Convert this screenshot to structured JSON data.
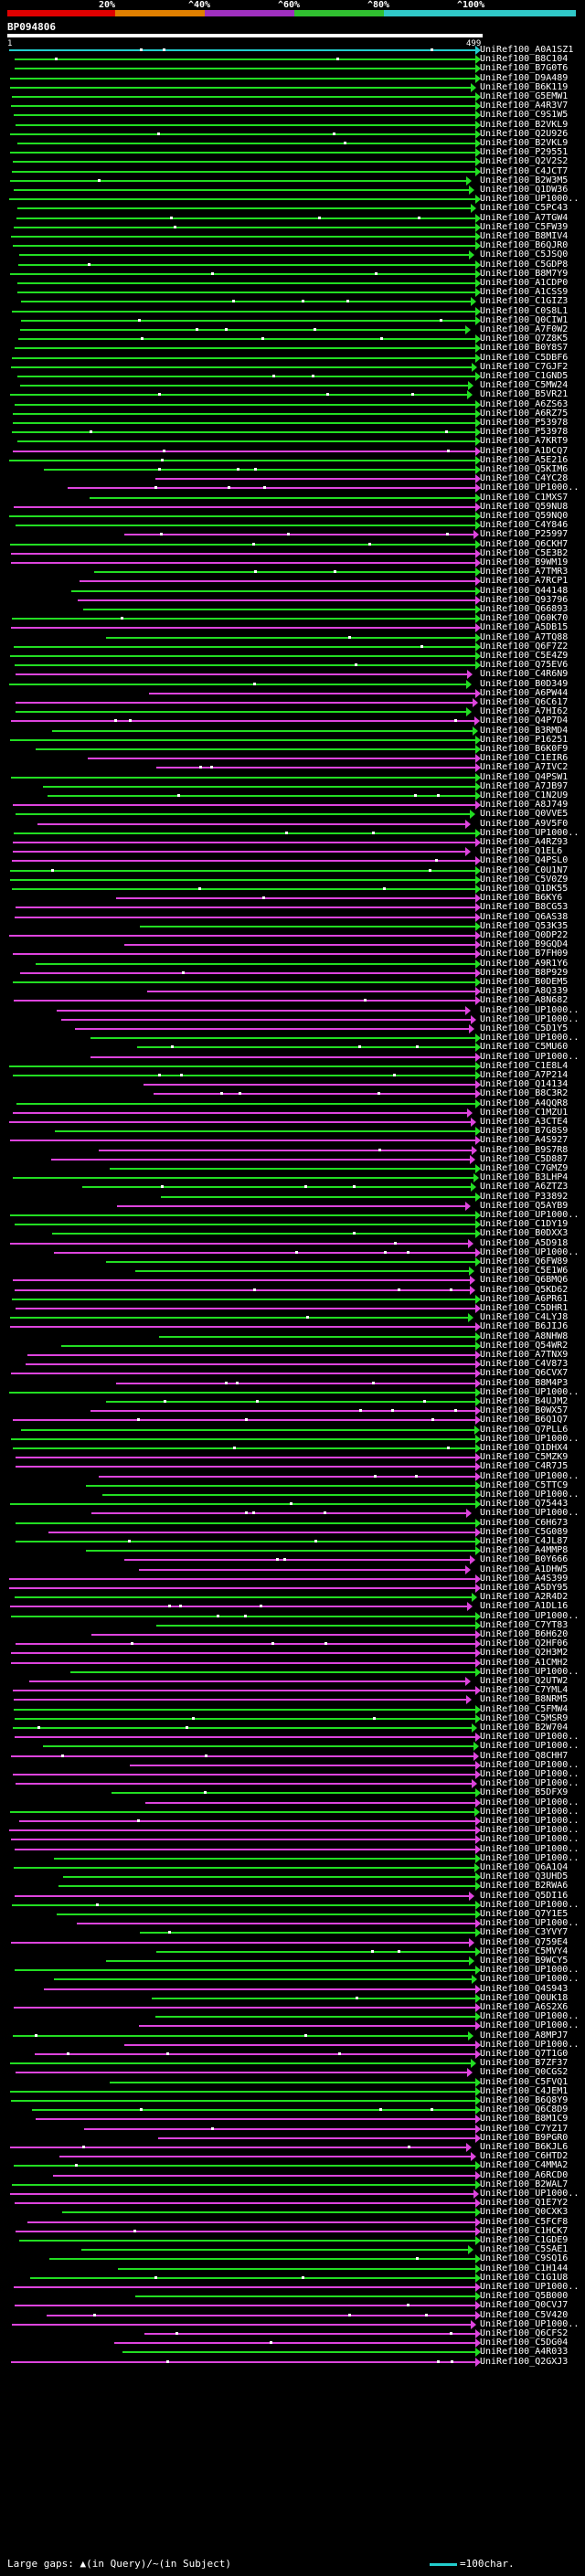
{
  "scale": {
    "labels": [
      "20%",
      "^40%",
      "^60%",
      "^80%",
      "^100%"
    ],
    "colors": [
      "#e00000",
      "#e08000",
      "#a030c0",
      "#30c030",
      "#30c8c8"
    ]
  },
  "query": {
    "id": "BP094806",
    "start": "1",
    "end": "499"
  },
  "palette": {
    "green": "#22dd22",
    "magenta": "#dd44dd",
    "cyan": "#22cccc"
  },
  "footer": {
    "gaps": "Large gaps: ▲(in Query)/~(in Subject)",
    "legend": "=100char."
  },
  "hits": [
    "UniRef100_A0A1SZ1",
    "UniRef100_B8C104",
    "UniRef100_B7G0T6",
    "UniRef100_D9A489",
    "UniRef100_B6K119",
    "UniRef100_G5EMW1",
    "UniRef100_A4R3V7",
    "UniRef100_C9S1W5",
    "UniRef100_B2VKL9",
    "UniRef100_Q2U926",
    "UniRef100_B2VKL9",
    "UniRef100_P29551",
    "UniRef100_Q2V2S2",
    "UniRef100_C4JCT7",
    "UniRef100_B2W3M5",
    "UniRef100_Q1DW36",
    "UniRef100_UP1000..",
    "UniRef100_C5PC43",
    "UniRef100_A7TGW4",
    "UniRef100_C5FW39",
    "UniRef100_B8MIV4",
    "UniRef100_B6QJR0",
    "UniRef100_C5JSQ0",
    "UniRef100_C5GDP8",
    "UniRef100_B8M7Y9",
    "UniRef100_A1CDP0",
    "UniRef100_A1CSS9",
    "UniRef100_C1GIZ3",
    "UniRef100_C0S8L1",
    "UniRef100_Q0CIW1",
    "UniRef100_A7F0W2",
    "UniRef100_Q7Z8K5",
    "UniRef100_B0Y8S7",
    "UniRef100_C5DBF6",
    "UniRef100_C7GJF2",
    "UniRef100_C1GND5",
    "UniRef100_C5MW24",
    "UniRef100_B5VR21",
    "UniRef100_A6ZS63",
    "UniRef100_A6RZ75",
    "UniRef100_P53978",
    "UniRef100_P53978",
    "UniRef100_A7KRT9",
    "UniRef100_A1DCQ7",
    "UniRef100_A5E216",
    "UniRef100_Q5KIM6",
    "UniRef100_C4YC28",
    "UniRef100_UP1000..",
    "UniRef100_C1MXS7",
    "UniRef100_Q59NU8",
    "UniRef100_Q59NQ0",
    "UniRef100_C4Y846",
    "UniRef100_P25997",
    "UniRef100_Q6CKH7",
    "UniRef100_C5E3B2",
    "UniRef100_B9WM19",
    "UniRef100_A7TMR3",
    "UniRef100_A7RCP1",
    "UniRef100_Q44148",
    "UniRef100_Q93796",
    "UniRef100_Q66893",
    "UniRef100_Q60K70",
    "UniRef100_A5DB15",
    "UniRef100_A7TQ88",
    "UniRef100_Q6F7Z2",
    "UniRef100_C5E4Z9",
    "UniRef100_Q75EV6",
    "UniRef100_C4R6N9",
    "UniRef100_B0D349",
    "UniRef100_A6PW44",
    "UniRef100_Q6C617",
    "UniRef100_A7HI62",
    "UniRef100_Q4P7D4",
    "UniRef100_B3RMD4",
    "UniRef100_P16251",
    "UniRef100_B6K0F9",
    "UniRef100_C1EIR6",
    "UniRef100_A7IVC2",
    "UniRef100_Q4PSW1",
    "UniRef100_A7JB97",
    "UniRef100_C1N2U9",
    "UniRef100_A8J749",
    "UniRef100_Q0VVE5",
    "UniRef100_A9V5F0",
    "UniRef100_UP1000..",
    "UniRef100_A4RZ93",
    "UniRef100_Q1EL6",
    "UniRef100_Q4PSL0",
    "UniRef100_C0U1N7",
    "UniRef100_C5V0Z9",
    "UniRef100_Q1DK55",
    "UniRef100_B6KY6",
    "UniRef100_B8CG53",
    "UniRef100_Q6AS38",
    "UniRef100_Q53K35",
    "UniRef100_Q0DP22",
    "UniRef100_B9GQD4",
    "UniRef100_B7FH09",
    "UniRef100_A9R1Y6",
    "UniRef100_B8P929",
    "UniRef100_B0DEM5",
    "UniRef100_A8Q339",
    "UniRef100_A8N682",
    "UniRef100_UP1000..",
    "UniRef100_UP1000..",
    "UniRef100_C5D1Y5",
    "UniRef100_UP1000..",
    "UniRef100_C5MU60",
    "UniRef100_UP1000..",
    "UniRef100_C1E8L4",
    "UniRef100_A7P214",
    "UniRef100_Q14134",
    "UniRef100_B8C3R2",
    "UniRef100_A4QQR8",
    "UniRef100_C1MZU1",
    "UniRef100_A3CTE4",
    "UniRef100_B7G8S9",
    "UniRef100_A4S927",
    "UniRef100_B9S7R8",
    "UniRef100_C5D887",
    "UniRef100_C7GMZ9",
    "UniRef100_B3LHP4",
    "UniRef100_A6ZTZ3",
    "UniRef100_P33892",
    "UniRef100_Q5AYB9",
    "UniRef100_UP1000..",
    "UniRef100_C1DY19",
    "UniRef100_B0DXX3",
    "UniRef100_A5D918",
    "UniRef100_UP1000..",
    "UniRef100_Q6FW89",
    "UniRef100_C5E1W6",
    "UniRef100_Q6BMQ6",
    "UniRef100_Q5KD62",
    "UniRef100_A6PR61",
    "UniRef100_C5DHR1",
    "UniRef100_C4LYJ8",
    "UniRef100_B6JIJ6",
    "UniRef100_A8NHW8",
    "UniRef100_Q54WR2",
    "UniRef100_A7TNX9",
    "UniRef100_C4V873",
    "UniRef100_Q6CVX7",
    "UniRef100_B8M4P3",
    "UniRef100_UP1000..",
    "UniRef100_B4UJM2",
    "UniRef100_B0WX57",
    "UniRef100_B6Q1Q7",
    "UniRef100_Q7PLL6",
    "UniRef100_UP1000..",
    "UniRef100_Q1DHX4",
    "UniRef100_C5MZK9",
    "UniRef100_C4R7J5",
    "UniRef100_UP1000..",
    "UniRef100_C5TTC9",
    "UniRef100_UP1000..",
    "UniRef100_Q75443",
    "UniRef100_UP1000..",
    "UniRef100_C6H673",
    "UniRef100_C5G089",
    "UniRef100_C4JL87",
    "UniRef100_A4MMP8",
    "UniRef100_B0Y666",
    "UniRef100_A1DHW5",
    "UniRef100_A4S399",
    "UniRef100_A5DY95",
    "UniRef100_A2R4D2",
    "UniRef100_A1DL16",
    "UniRef100_UP1000..",
    "UniRef100_C7YT83",
    "UniRef100_B6H620",
    "UniRef100_Q2HF06",
    "UniRef100_Q2H3M2",
    "UniRef100_A1CMH2",
    "UniRef100_UP1000..",
    "UniRef100_Q2UTW2",
    "UniRef100_C7YML4",
    "UniRef100_B8NRM5",
    "UniRef100_C5FMW4",
    "UniRef100_C5MSR9",
    "UniRef100_B2W704",
    "UniRef100_UP1000..",
    "UniRef100_UP1000..",
    "UniRef100_Q8CHH7",
    "UniRef100_UP1000..",
    "UniRef100_UP1000..",
    "UniRef100_UP1000..",
    "UniRef100_B5DFX9",
    "UniRef100_UP1000..",
    "UniRef100_UP1000..",
    "UniRef100_UP1000..",
    "UniRef100_UP1000..",
    "UniRef100_UP1000..",
    "UniRef100_UP1000..",
    "UniRef100_UP1000..",
    "UniRef100_Q6A1Q4",
    "UniRef100_Q3UHD5",
    "UniRef100_B2RWA6",
    "UniRef100_Q5DI16",
    "UniRef100_UP1000..",
    "UniRef100_Q7Y1E5",
    "UniRef100_UP1000..",
    "UniRef100_C3YVY7",
    "UniRef100_Q759E4",
    "UniRef100_C5MVY4",
    "UniRef100_B9WCY5",
    "UniRef100_UP1000..",
    "UniRef100_UP1000..",
    "UniRef100_Q4S943",
    "UniRef100_Q0UK18",
    "UniRef100_A6S2X6",
    "UniRef100_UP1000..",
    "UniRef100_UP1000..",
    "UniRef100_A8MPJ7",
    "UniRef100_UP1000..",
    "UniRef100_Q7T1G0",
    "UniRef100_B7ZF37",
    "UniRef100_Q0CGS2",
    "UniRef100_C5FVQ1",
    "UniRef100_C4JEM1",
    "UniRef100_B6Q8Y9",
    "UniRef100_Q6C8D9",
    "UniRef100_B8M1C9",
    "UniRef100_C7YZ17",
    "UniRef100_B9PGR0",
    "UniRef100_B6KJL6",
    "UniRef100_C6HTD2",
    "UniRef100_C4MMA2",
    "UniRef100_A6RCD0",
    "UniRef100_B2WAL7",
    "UniRef100_UP1000..",
    "UniRef100_Q1E7Y2",
    "UniRef100_Q0CXK3",
    "UniRef100_C5FCF8",
    "UniRef100_C1HCK7",
    "UniRef100_C1GDE9",
    "UniRef100_C5SAE1",
    "UniRef100_C9SQ16",
    "UniRef100_C1H144",
    "UniRef100_C1G1U8",
    "UniRef100_UP1000..",
    "UniRef100_Q5B000",
    "UniRef100_Q0CVJ7",
    "UniRef100_C5V420",
    "UniRef100_UP1000..",
    "UniRef100_Q6CFS2",
    "UniRef100_C5DG04",
    "UniRef100_A4R033",
    "UniRef100_Q2GXJ3"
  ]
}
